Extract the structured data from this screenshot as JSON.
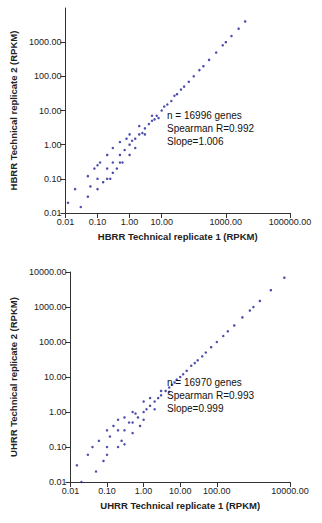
{
  "chart_data": [
    {
      "type": "scatter",
      "x_label": "HBRR Technical replicate 1 (RPKM)",
      "y_label": "HBRR Technical replicate 2 (RPKM)",
      "annotations": [
        "n = 16996 genes",
        "Spearman R=0.992",
        "Slope=1.006"
      ],
      "log": true,
      "grid": false,
      "color": "#2b2f9e",
      "marker": "circle",
      "xlim": [
        0.01,
        100000
      ],
      "xticks": [
        0.01,
        {
          "value": 0.1,
          "label": "0.10"
        },
        {
          "value": 1,
          "label": "1.00"
        },
        {
          "value": 10,
          "label": "10.00"
        },
        {
          "value": 1000,
          "label": "1000.00"
        },
        {
          "value": 100000,
          "label": "100000.00"
        }
      ],
      "ylim": [
        0.01,
        10000
      ],
      "yticks": [
        0.01,
        {
          "value": 0.1,
          "label": "0.10"
        },
        {
          "value": 1,
          "label": "1.00"
        },
        {
          "value": 10,
          "label": "10.00"
        },
        {
          "value": 100,
          "label": "100.00"
        },
        {
          "value": 1000,
          "label": "1000.00"
        }
      ],
      "x": [
        0.012,
        0.02,
        0.03,
        0.05,
        0.05,
        0.06,
        0.08,
        0.1,
        0.1,
        0.1,
        0.12,
        0.15,
        0.2,
        0.2,
        0.2,
        0.25,
        0.3,
        0.3,
        0.3,
        0.4,
        0.5,
        0.5,
        0.5,
        0.6,
        0.7,
        0.8,
        1,
        1,
        1,
        1.2,
        1.5,
        1.5,
        2,
        2,
        2.5,
        3,
        3,
        4,
        5,
        5,
        6,
        7,
        8,
        10,
        12,
        15,
        20,
        25,
        30,
        40,
        50,
        70,
        100,
        150,
        200,
        300,
        500,
        800,
        1000,
        1500,
        2500,
        4000
      ],
      "values": [
        0.02,
        0.05,
        0.015,
        0.12,
        0.03,
        0.06,
        0.2,
        0.05,
        0.1,
        0.25,
        0.3,
        0.08,
        0.2,
        0.5,
        0.1,
        0.1,
        0.3,
        0.8,
        0.15,
        0.2,
        0.5,
        1.2,
        0.3,
        0.3,
        0.7,
        1.5,
        1,
        0.5,
        2,
        1.3,
        1.5,
        0.8,
        2,
        3.5,
        2.2,
        3,
        2,
        4,
        5,
        7,
        5.5,
        7,
        6,
        10,
        13,
        15,
        19,
        27,
        30,
        41,
        50,
        69,
        100,
        152,
        198,
        303,
        495,
        810,
        1000,
        1510,
        2480,
        4050
      ]
    },
    {
      "type": "scatter",
      "x_label": "UHRR Technical replicate 1 (RPKM)",
      "y_label": "UHRR Technical replicate 2 (RPKM)",
      "annotations": [
        "n = 16970 genes",
        "Spearman R=0.993",
        "Slope=0.999"
      ],
      "log": true,
      "grid": false,
      "color": "#2b2f9e",
      "marker": "circle",
      "xlim": [
        0.01,
        10000
      ],
      "xticks": [
        0.01,
        {
          "value": 0.1,
          "label": "0.10"
        },
        {
          "value": 1,
          "label": "1.00"
        },
        {
          "value": 10,
          "label": "10.00"
        },
        {
          "value": 100,
          "label": "100.00"
        },
        {
          "value": 10000,
          "label": "10000.00"
        }
      ],
      "ylim": [
        0.01,
        10000
      ],
      "yticks": [
        0.01,
        {
          "value": 0.1,
          "label": "0.10"
        },
        {
          "value": 1,
          "label": "1.00"
        },
        {
          "value": 10,
          "label": "10.00"
        },
        {
          "value": 100,
          "label": "100.00"
        },
        {
          "value": 1000,
          "label": "1000.00"
        },
        {
          "value": 10000,
          "label": "10000.00"
        }
      ],
      "x": [
        0.015,
        0.02,
        0.03,
        0.04,
        0.05,
        0.06,
        0.08,
        0.1,
        0.1,
        0.1,
        0.12,
        0.15,
        0.2,
        0.2,
        0.2,
        0.25,
        0.3,
        0.3,
        0.3,
        0.4,
        0.5,
        0.5,
        0.5,
        0.6,
        0.7,
        0.8,
        1,
        1,
        1,
        1.2,
        1.5,
        1.5,
        2,
        2,
        2.5,
        3,
        3,
        4,
        5,
        5,
        6,
        7,
        8,
        10,
        12,
        15,
        20,
        25,
        30,
        40,
        50,
        70,
        100,
        150,
        200,
        300,
        500,
        800,
        1000,
        1500,
        3000,
        7000
      ],
      "values": [
        0.03,
        0.01,
        0.06,
        0.1,
        0.02,
        0.15,
        0.04,
        0.3,
        0.1,
        0.06,
        0.2,
        0.4,
        0.1,
        0.3,
        0.6,
        0.15,
        0.3,
        0.7,
        0.12,
        0.5,
        0.5,
        1,
        0.25,
        0.9,
        0.7,
        0.4,
        1,
        2,
        0.6,
        1.2,
        1.5,
        2.5,
        2,
        1.2,
        2.5,
        3,
        4,
        4,
        5,
        3.8,
        6,
        7,
        8.5,
        10,
        12,
        15,
        21,
        25,
        30,
        39,
        50,
        71,
        100,
        148,
        202,
        297,
        505,
        790,
        1000,
        1490,
        3020,
        6900
      ]
    }
  ]
}
